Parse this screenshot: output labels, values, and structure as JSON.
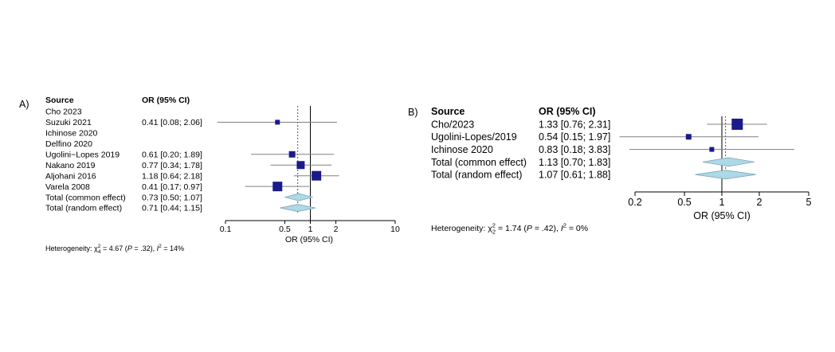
{
  "colors": {
    "square": "#1a1a8c",
    "diamond_fill": "#add8e6",
    "diamond_stroke": "#7fa8b8",
    "ci_line": "#808080",
    "axis": "#000000"
  },
  "chart_data": [
    {
      "type": "forest",
      "panel_label": "A)",
      "headers": {
        "source": "Source",
        "or": "OR (95% CI)"
      },
      "xlabel": "OR (95% CI)",
      "scale": "log",
      "xlim": [
        0.1,
        10
      ],
      "ticks": [
        0.1,
        0.5,
        1,
        2,
        10
      ],
      "tick_labels": [
        "0.1",
        "0.5",
        "1",
        "2",
        "10"
      ],
      "null_line": 1,
      "random_line": 0.71,
      "heterogeneity": {
        "prefix": "Heterogeneity: ",
        "chi_symbol": "χ",
        "chi_sup": "2",
        "chi_sub": "4",
        "chi_rest": " = 4.67 (",
        "p_symbol": "P",
        "p_rest": " = .32), ",
        "i_symbol": "I",
        "i_sup": "2",
        "i_rest": " = 14%"
      },
      "studies": [
        {
          "source": "Cho 2023",
          "or_text": "",
          "or": null,
          "lo": null,
          "hi": null,
          "size": 0
        },
        {
          "source": "Suzuki 2021",
          "or_text": "0.41 [0.08; 2.06]",
          "or": 0.41,
          "lo": 0.08,
          "hi": 2.06,
          "size": 3
        },
        {
          "source": "Ichinose 2020",
          "or_text": "",
          "or": null,
          "lo": null,
          "hi": null,
          "size": 0
        },
        {
          "source": "Delfino 2020",
          "or_text": "",
          "or": null,
          "lo": null,
          "hi": null,
          "size": 0
        },
        {
          "source": "Ugolini−Lopes 2019",
          "or_text": "0.61 [0.20; 1.89]",
          "or": 0.61,
          "lo": 0.2,
          "hi": 1.89,
          "size": 4
        },
        {
          "source": "Nakano 2019",
          "or_text": "0.77 [0.34; 1.78]",
          "or": 0.77,
          "lo": 0.34,
          "hi": 1.78,
          "size": 5
        },
        {
          "source": "Aljohani 2016",
          "or_text": "1.18 [0.64; 2.18]",
          "or": 1.18,
          "lo": 0.64,
          "hi": 2.18,
          "size": 6
        },
        {
          "source": "Varela 2008",
          "or_text": "0.41 [0.17; 0.97]",
          "or": 0.41,
          "lo": 0.17,
          "hi": 0.97,
          "size": 6
        }
      ],
      "pooled": [
        {
          "source": "Total (common effect)",
          "or_text": "0.73 [0.50; 1.07]",
          "or": 0.73,
          "lo": 0.5,
          "hi": 1.07
        },
        {
          "source": "Total (random effect)",
          "or_text": "0.71 [0.44; 1.15]",
          "or": 0.71,
          "lo": 0.44,
          "hi": 1.15
        }
      ]
    },
    {
      "type": "forest",
      "panel_label": "B)",
      "headers": {
        "source": "Source",
        "or": "OR (95% CI)"
      },
      "xlabel": "OR (95% CI)",
      "scale": "log",
      "xlim": [
        0.2,
        5
      ],
      "ticks": [
        0.2,
        0.5,
        1,
        2,
        5
      ],
      "tick_labels": [
        "0.2",
        "0.5",
        "1",
        "2",
        "5"
      ],
      "null_line": 1,
      "random_line": 1.07,
      "heterogeneity": {
        "prefix": "Heterogeneity: ",
        "chi_symbol": "χ",
        "chi_sup": "2",
        "chi_sub": "2",
        "chi_rest": " = 1.74 (",
        "p_symbol": "P",
        "p_rest": " = .42), ",
        "i_symbol": "I",
        "i_sup": "2",
        "i_rest": " = 0%"
      },
      "studies": [
        {
          "source": "Cho/2023",
          "or_text": "1.33 [0.76; 2.31]",
          "or": 1.33,
          "lo": 0.76,
          "hi": 2.31,
          "size": 7
        },
        {
          "source": "Ugolini-Lopes/2019",
          "or_text": "0.54 [0.15; 1.97]",
          "or": 0.54,
          "lo": 0.15,
          "hi": 1.97,
          "size": 3.5
        },
        {
          "source": "Ichinose 2020",
          "or_text": "0.83 [0.18; 3.83]",
          "or": 0.83,
          "lo": 0.18,
          "hi": 3.83,
          "size": 3
        }
      ],
      "pooled": [
        {
          "source": "Total (common effect)",
          "or_text": "1.13 [0.70; 1.83]",
          "or": 1.13,
          "lo": 0.7,
          "hi": 1.83
        },
        {
          "source": "Total (random effect)",
          "or_text": "1.07 [0.61; 1.88]",
          "or": 1.07,
          "lo": 0.61,
          "hi": 1.88
        }
      ]
    }
  ]
}
